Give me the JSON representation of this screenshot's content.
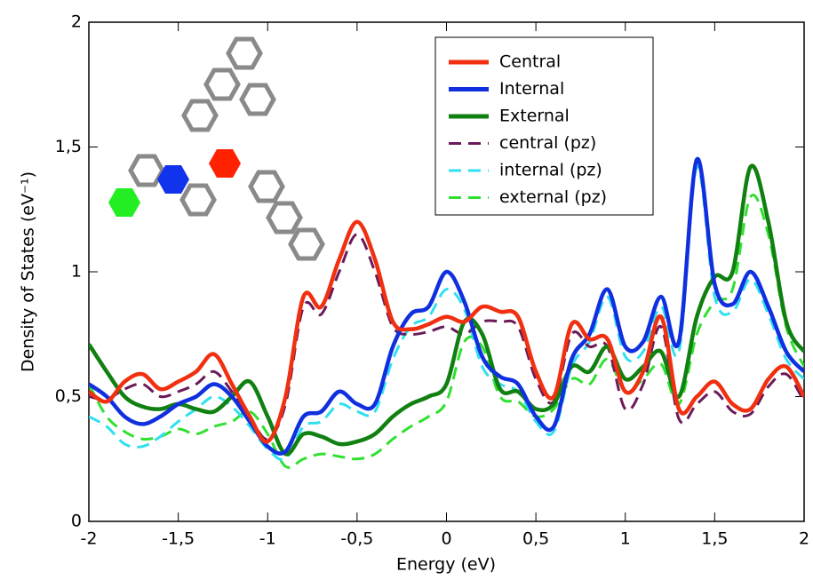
{
  "chart_data": {
    "type": "line",
    "x_label": "Energy (eV)",
    "y_label": "Density of States (eV⁻¹)",
    "x": [
      -2,
      -1.9,
      -1.8,
      -1.7,
      -1.6,
      -1.5,
      -1.4,
      -1.3,
      -1.2,
      -1.1,
      -1,
      -0.9,
      -0.8,
      -0.7,
      -0.6,
      -0.5,
      -0.4,
      -0.3,
      -0.2,
      -0.1,
      0,
      0.1,
      0.2,
      0.3,
      0.4,
      0.5,
      0.6,
      0.7,
      0.8,
      0.9,
      1,
      1.1,
      1.2,
      1.3,
      1.4,
      1.5,
      1.6,
      1.7,
      1.8,
      1.9,
      2
    ],
    "series": [
      {
        "name": "Central",
        "color": "#f03010",
        "dashed": false,
        "values": [
          0.52,
          0.48,
          0.56,
          0.59,
          0.53,
          0.56,
          0.6,
          0.67,
          0.55,
          0.42,
          0.32,
          0.5,
          0.9,
          0.86,
          1.05,
          1.2,
          1.05,
          0.8,
          0.77,
          0.79,
          0.82,
          0.8,
          0.86,
          0.84,
          0.82,
          0.6,
          0.5,
          0.79,
          0.73,
          0.73,
          0.52,
          0.6,
          0.82,
          0.45,
          0.5,
          0.56,
          0.47,
          0.45,
          0.57,
          0.62,
          0.5
        ]
      },
      {
        "name": "Internal",
        "color": "#1030e0",
        "dashed": false,
        "values": [
          0.55,
          0.5,
          0.42,
          0.39,
          0.42,
          0.47,
          0.5,
          0.55,
          0.5,
          0.4,
          0.3,
          0.28,
          0.42,
          0.44,
          0.52,
          0.47,
          0.47,
          0.7,
          0.83,
          0.86,
          1.0,
          0.88,
          0.66,
          0.58,
          0.55,
          0.42,
          0.38,
          0.65,
          0.75,
          0.93,
          0.7,
          0.72,
          0.9,
          0.72,
          1.45,
          0.95,
          0.87,
          1.0,
          0.86,
          0.68,
          0.6
        ]
      },
      {
        "name": "External",
        "color": "#108010",
        "dashed": false,
        "values": [
          0.71,
          0.6,
          0.5,
          0.46,
          0.45,
          0.47,
          0.45,
          0.44,
          0.5,
          0.56,
          0.42,
          0.27,
          0.35,
          0.34,
          0.31,
          0.32,
          0.35,
          0.42,
          0.47,
          0.5,
          0.55,
          0.8,
          0.75,
          0.53,
          0.52,
          0.45,
          0.47,
          0.62,
          0.6,
          0.7,
          0.57,
          0.62,
          0.68,
          0.5,
          0.82,
          0.98,
          1.0,
          1.42,
          1.2,
          0.8,
          0.68
        ]
      },
      {
        "name": "central (pz)",
        "color": "#6a1a5a",
        "dashed": true,
        "values": [
          0.5,
          0.49,
          0.53,
          0.55,
          0.5,
          0.52,
          0.55,
          0.6,
          0.52,
          0.42,
          0.33,
          0.47,
          0.86,
          0.83,
          1.0,
          1.15,
          1.0,
          0.78,
          0.75,
          0.76,
          0.78,
          0.75,
          0.8,
          0.8,
          0.78,
          0.57,
          0.48,
          0.75,
          0.7,
          0.7,
          0.45,
          0.55,
          0.78,
          0.41,
          0.47,
          0.52,
          0.44,
          0.43,
          0.54,
          0.59,
          0.48
        ]
      },
      {
        "name": "internal (pz)",
        "color": "#30e0f0",
        "dashed": true,
        "values": [
          0.42,
          0.38,
          0.31,
          0.3,
          0.34,
          0.4,
          0.45,
          0.5,
          0.46,
          0.38,
          0.29,
          0.25,
          0.38,
          0.4,
          0.47,
          0.44,
          0.44,
          0.65,
          0.78,
          0.82,
          0.93,
          0.85,
          0.62,
          0.55,
          0.52,
          0.4,
          0.36,
          0.62,
          0.72,
          0.9,
          0.66,
          0.68,
          0.86,
          0.68,
          1.42,
          0.9,
          0.84,
          0.97,
          0.83,
          0.65,
          0.57
        ]
      },
      {
        "name": "external (pz)",
        "color": "#30e030",
        "dashed": true,
        "values": [
          0.55,
          0.42,
          0.36,
          0.33,
          0.34,
          0.37,
          0.35,
          0.38,
          0.4,
          0.44,
          0.35,
          0.22,
          0.25,
          0.27,
          0.26,
          0.25,
          0.27,
          0.33,
          0.38,
          0.42,
          0.48,
          0.72,
          0.7,
          0.5,
          0.48,
          0.42,
          0.45,
          0.57,
          0.55,
          0.65,
          0.52,
          0.57,
          0.63,
          0.47,
          0.75,
          0.88,
          0.93,
          1.3,
          1.15,
          0.78,
          0.62
        ]
      }
    ],
    "xlim": [
      -2,
      2
    ],
    "ylim": [
      0,
      2
    ],
    "xticks": [
      -2,
      {
        "value": -1.5,
        "label": "-1,5"
      },
      -1,
      {
        "value": -0.5,
        "label": "-0,5"
      },
      0,
      {
        "value": 0.5,
        "label": "0,5"
      },
      1,
      {
        "value": 1.5,
        "label": "1,5"
      },
      2
    ],
    "yticks": [
      0,
      {
        "value": 0.5,
        "label": "0,5"
      },
      1,
      {
        "value": 1.5,
        "label": "1,5"
      },
      2
    ],
    "grid": false,
    "legend": "upper right"
  }
}
